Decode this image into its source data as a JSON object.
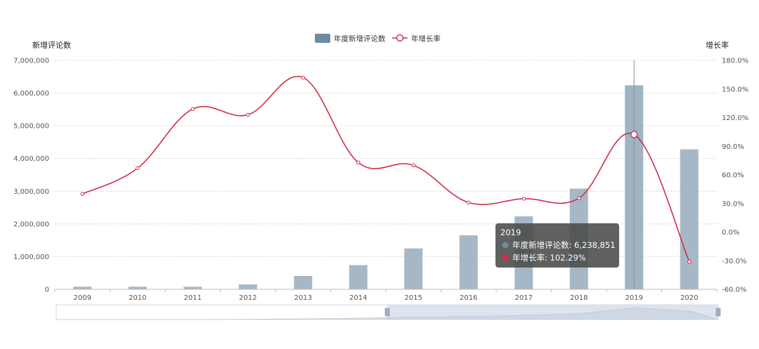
{
  "chart_data": {
    "type": "bar",
    "categories": [
      "2009",
      "2010",
      "2011",
      "2012",
      "2013",
      "2014",
      "2015",
      "2016",
      "2017",
      "2018",
      "2019",
      "2020"
    ],
    "series": [
      {
        "name": "年度新增评论数",
        "type": "bar",
        "axis": "left",
        "color": "#6e8ba0",
        "values": [
          80000,
          80000,
          80000,
          150000,
          410000,
          740000,
          1250000,
          1650000,
          2230000,
          3080000,
          6238851,
          4280000
        ]
      },
      {
        "name": "年增长率",
        "type": "line",
        "axis": "right",
        "color": "#d0304a",
        "values": [
          40.0,
          67.0,
          129.0,
          123.0,
          162.0,
          73.0,
          70.0,
          31.0,
          35.0,
          35.5,
          102.29,
          -31.0
        ]
      }
    ],
    "left_axis": {
      "title": "新增评论数",
      "ylim": [
        0,
        7000000
      ],
      "ticks": [
        "0",
        "1,000,000",
        "2,000,000",
        "3,000,000",
        "4,000,000",
        "5,000,000",
        "6,000,000",
        "7,000,000"
      ]
    },
    "right_axis": {
      "title": "增长率",
      "ylim": [
        -60,
        180
      ],
      "ticks": [
        "-60.0%",
        "-30.0%",
        "0.0%",
        "30.0%",
        "60.0%",
        "90.0%",
        "120.0%",
        "150.0%",
        "180.0%"
      ]
    },
    "legend_position": "top-center",
    "grid": true,
    "tooltip": {
      "category": "2019",
      "lines": [
        {
          "label": "年度新增评论数: 6,238,851",
          "color": "#6e8ba0"
        },
        {
          "label": "年增长率: 102.29%",
          "color": "#d0304a"
        }
      ]
    },
    "highlight_index": 10
  }
}
